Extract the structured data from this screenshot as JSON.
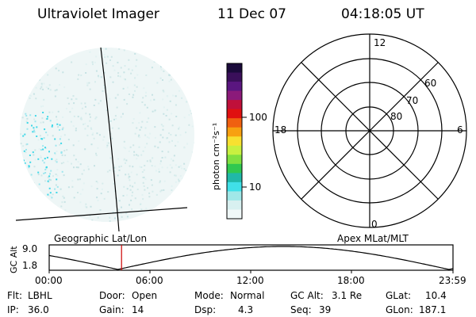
{
  "header": {
    "instrument": "Ultraviolet Imager",
    "date": "11 Dec 07",
    "time": "04:18:05 UT"
  },
  "colorbar": {
    "label": "photon cm⁻²s⁻¹",
    "ticks": [
      "100",
      "10"
    ],
    "colors": [
      "#1a0a3a",
      "#3a0f5a",
      "#5a1680",
      "#8b1a7a",
      "#c0103a",
      "#e01010",
      "#f06010",
      "#f8a010",
      "#f8e030",
      "#c8f040",
      "#80e040",
      "#30c850",
      "#20b8a8",
      "#40e0e8",
      "#a0e8e8",
      "#d8f0f0",
      "#f0f8f8"
    ]
  },
  "left_panel": {
    "name": "Geographic Lat/Lon",
    "speckle_color": "#40d8e8"
  },
  "polar_panel": {
    "name": "Apex MLat/MLT",
    "mlt_labels": [
      "12",
      "18",
      "6",
      "0"
    ],
    "lat_labels": [
      "60",
      "70",
      "80"
    ]
  },
  "altitude_plot": {
    "ylabel": "GC Alt",
    "yticks": [
      "9.0",
      "1.8"
    ],
    "xticks": [
      "00:00",
      "06:00",
      "12:00",
      "18:00",
      "23:59"
    ],
    "current_time_hours": 4.3,
    "marker_color": "#cc0000"
  },
  "status": {
    "flt_label": "Flt:",
    "flt_value": "LBHL",
    "ip_label": "IP:",
    "ip_value": "36.0",
    "door_label": "Door:",
    "door_value": "Open",
    "gain_label": "Gain:",
    "gain_value": "14",
    "mode_label": "Mode:",
    "mode_value": "Normal",
    "dsp_label": "Dsp:",
    "dsp_value": "4.3",
    "gcalt_label": "GC Alt:",
    "gcalt_value": "3.1 Re",
    "seq_label": "Seq:",
    "seq_value": "39",
    "glat_label": "GLat:",
    "glat_value": "10.4",
    "glon_label": "GLon:",
    "glon_value": "187.1"
  }
}
